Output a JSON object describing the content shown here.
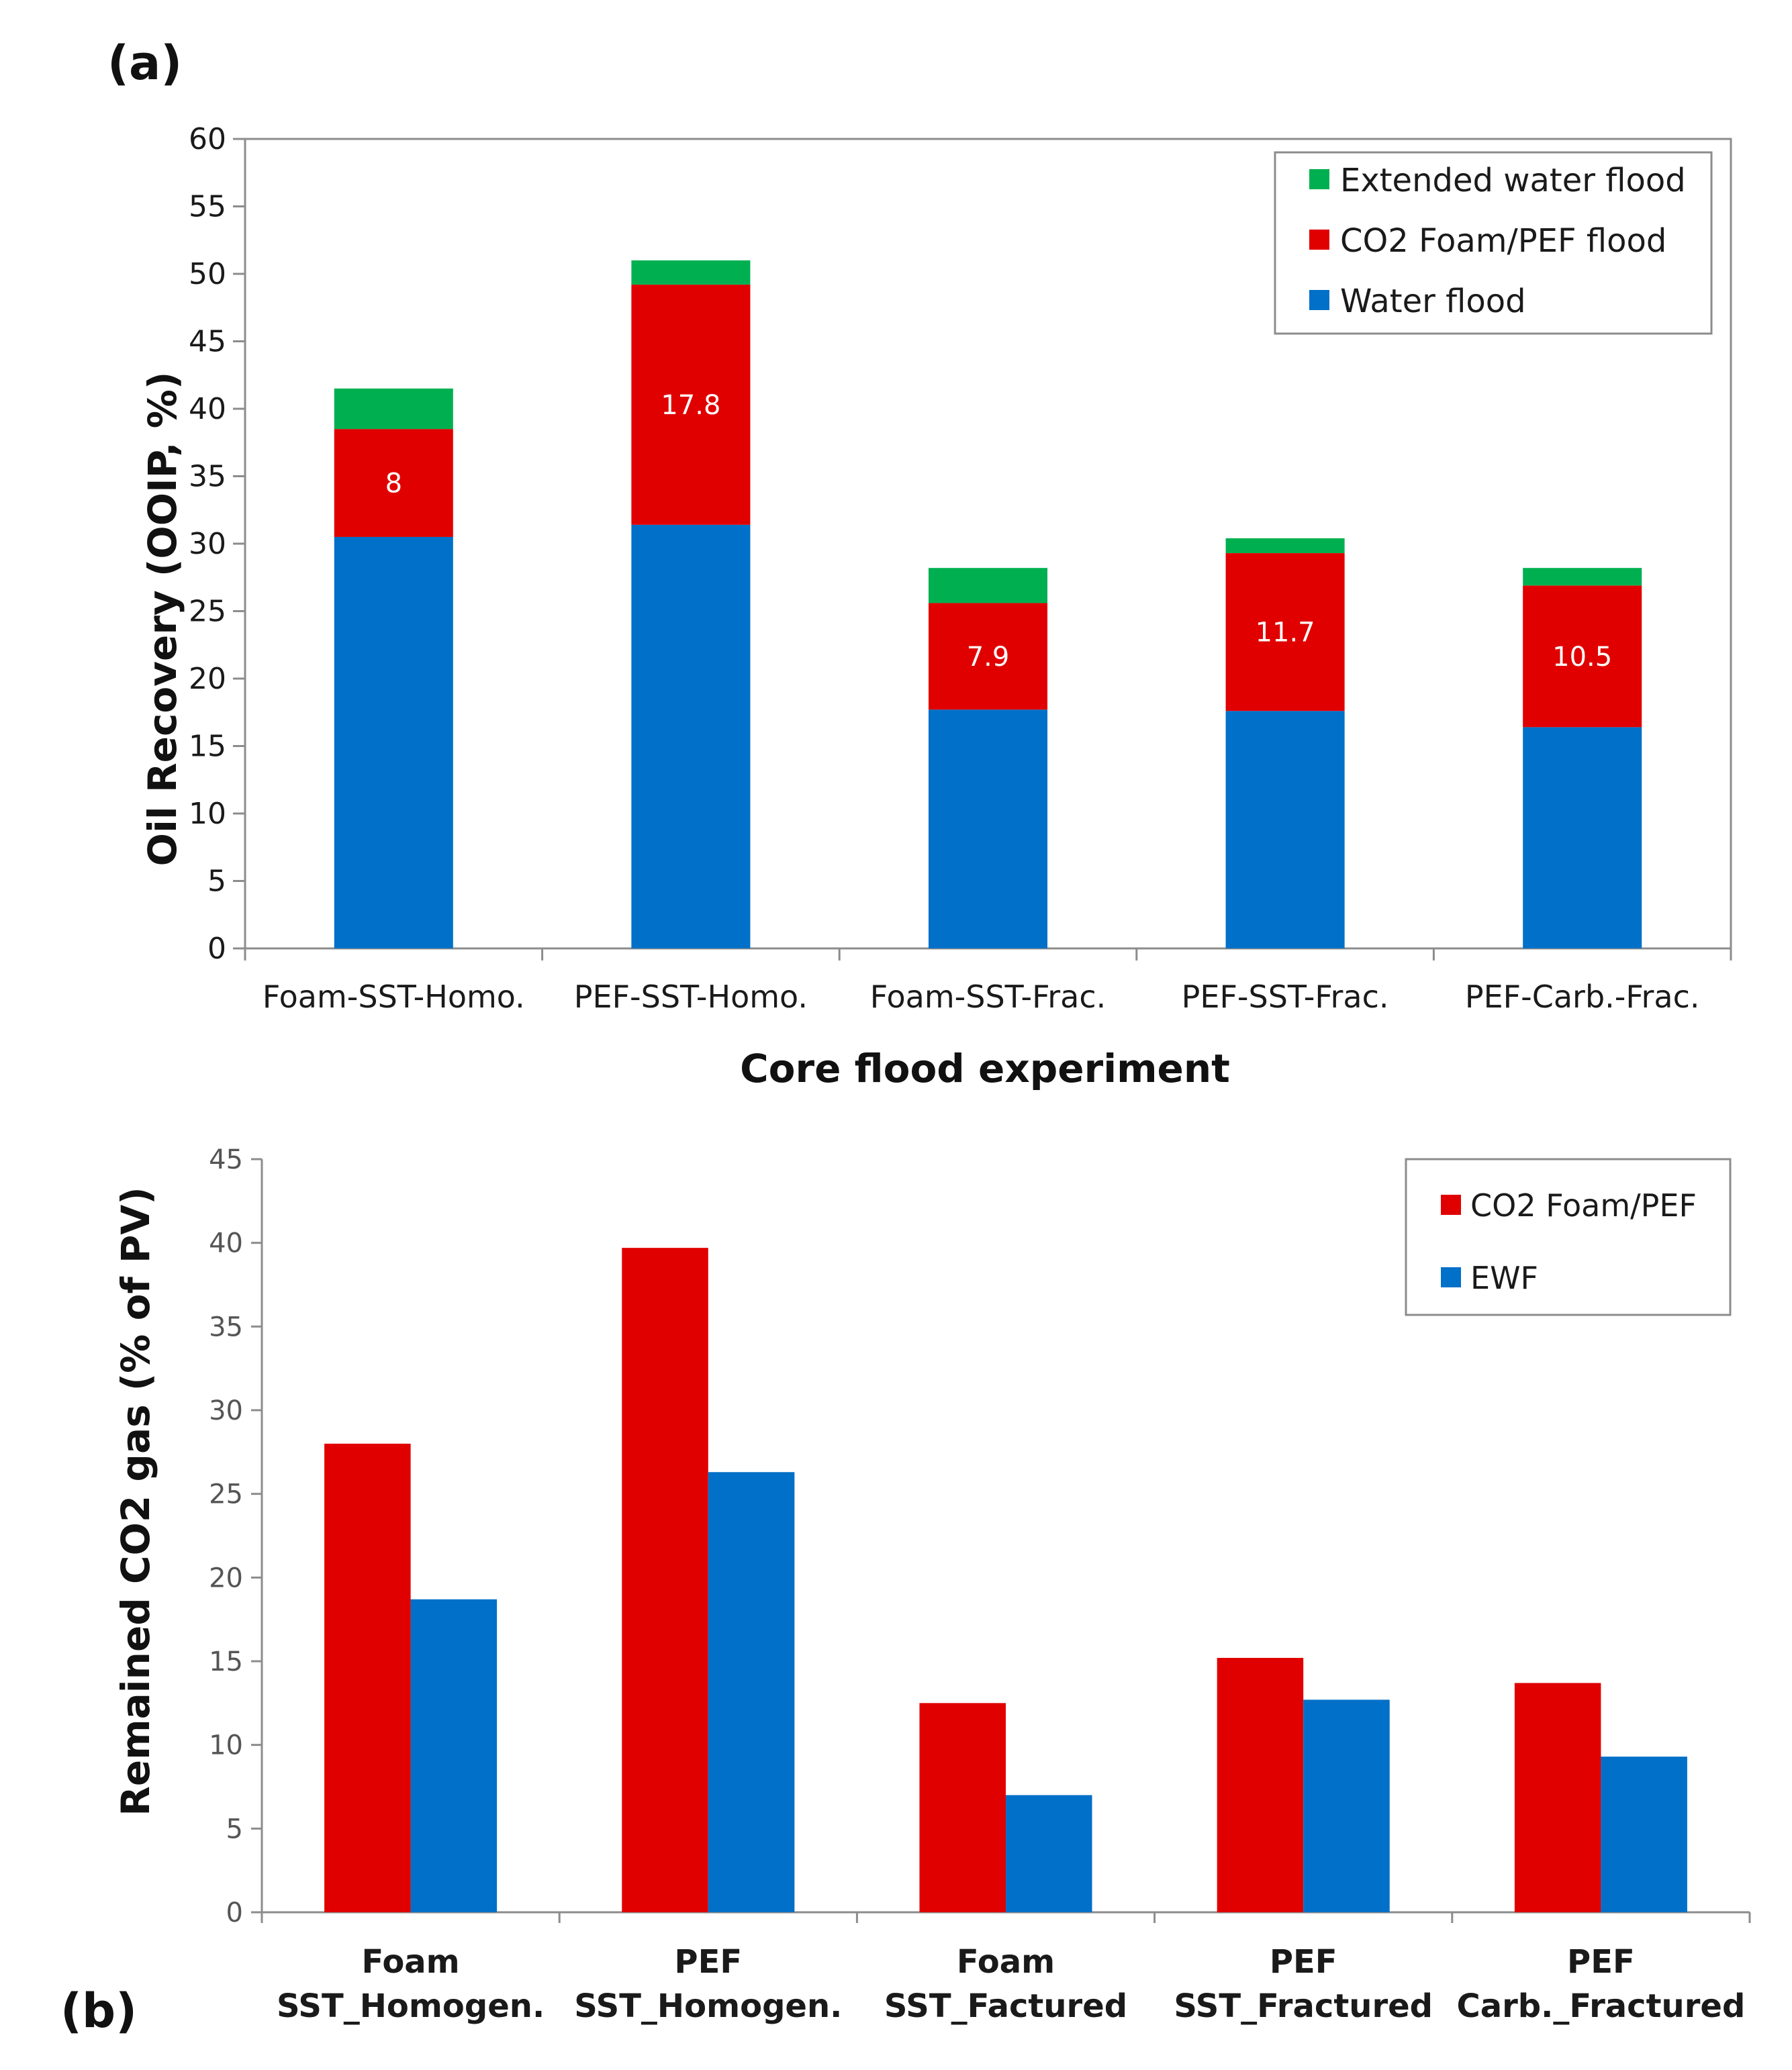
{
  "colors": {
    "water_flood": "#0070c8",
    "foam_pef": "#e00000",
    "extended_water": "#00b050",
    "ewf": "#0070c8",
    "axis": "#8c8c8c"
  },
  "chart_data": [
    {
      "panel_label": "(a)",
      "type": "bar",
      "stacked": true,
      "categories": [
        "Foam-SST-Homo.",
        "PEF-SST-Homo.",
        "Foam-SST-Frac.",
        "PEF-SST-Frac.",
        "PEF-Carb.-Frac."
      ],
      "series": [
        {
          "name": "Water flood",
          "values": [
            30.5,
            31.4,
            17.7,
            17.6,
            16.4
          ],
          "color_key": "water_flood"
        },
        {
          "name": "CO2 Foam/PEF flood",
          "values": [
            8.0,
            17.8,
            7.9,
            11.7,
            10.5
          ],
          "color_key": "foam_pef",
          "data_labels": [
            "8",
            "17.8",
            "7.9",
            "11.7",
            "10.5"
          ]
        },
        {
          "name": "Extended water flood",
          "values": [
            3.0,
            1.8,
            2.6,
            1.1,
            1.3
          ],
          "color_key": "extended_water"
        }
      ],
      "legend_order": [
        "Extended water flood",
        "CO2 Foam/PEF flood",
        "Water flood"
      ],
      "legend_position": "top-right",
      "title": "",
      "xlabel": "Core flood experiment",
      "ylabel": "Oil Recovery (OOIP, %)",
      "ylim": [
        0,
        60
      ],
      "yticks": [
        "0",
        "5",
        "10",
        "15",
        "20",
        "25",
        "30",
        "35",
        "40",
        "45",
        "50",
        "55",
        "60"
      ],
      "grid": false
    },
    {
      "panel_label": "(b)",
      "type": "bar",
      "stacked": false,
      "categories": [
        [
          "Foam",
          "SST_Homogen."
        ],
        [
          "PEF",
          "SST_Homogen."
        ],
        [
          "Foam",
          "SST_Factured"
        ],
        [
          "PEF",
          "SST_Fractured"
        ],
        [
          "PEF",
          "Carb._Fractured"
        ]
      ],
      "series": [
        {
          "name": "CO2 Foam/PEF",
          "values": [
            28.0,
            39.7,
            12.5,
            15.2,
            13.7
          ],
          "color_key": "foam_pef"
        },
        {
          "name": "EWF",
          "values": [
            18.7,
            26.3,
            7.0,
            12.7,
            9.3
          ],
          "color_key": "ewf"
        }
      ],
      "legend_order": [
        "CO2 Foam/PEF",
        "EWF"
      ],
      "legend_position": "top-right",
      "title": "",
      "xlabel": "",
      "ylabel": "Remained CO2 gas (% of PV)",
      "ylim": [
        0,
        45
      ],
      "yticks": [
        "0",
        "5",
        "10",
        "15",
        "20",
        "25",
        "30",
        "35",
        "40",
        "45"
      ],
      "grid": false
    }
  ]
}
